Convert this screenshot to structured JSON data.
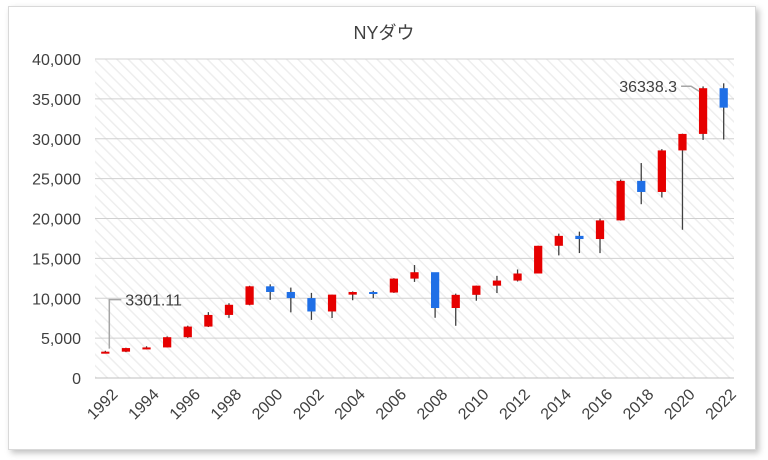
{
  "chart_data": {
    "type": "candlestick",
    "title": "NYダウ",
    "xlabel": "",
    "ylabel": "",
    "ylim": [
      0,
      40000
    ],
    "y_ticks": [
      0,
      5000,
      10000,
      15000,
      20000,
      25000,
      30000,
      35000,
      40000
    ],
    "y_tick_labels": [
      "0",
      "5,000",
      "10,000",
      "15,000",
      "20,000",
      "25,000",
      "30,000",
      "35,000",
      "40,000"
    ],
    "x_tick_labels": [
      "1992",
      "1994",
      "1996",
      "1998",
      "2000",
      "2002",
      "2004",
      "2006",
      "2008",
      "2010",
      "2012",
      "2014",
      "2016",
      "2018",
      "2020",
      "2022"
    ],
    "grid": true,
    "colors": {
      "up": "#e60000",
      "down": "#1f6fe6",
      "wick": "#404040",
      "grid": "#d0d0d0",
      "plot_hatch": "#eeeeee"
    },
    "candles": [
      {
        "x": "1992",
        "open": 3168,
        "close": 3301.11,
        "high": 3413,
        "low": 3136
      },
      {
        "x": "1993",
        "open": 3301,
        "close": 3754,
        "high": 3794,
        "low": 3241
      },
      {
        "x": "1994",
        "open": 3754,
        "close": 3834,
        "high": 3978,
        "low": 3593
      },
      {
        "x": "1995",
        "open": 3834,
        "close": 5117,
        "high": 5216,
        "low": 3832
      },
      {
        "x": "1996",
        "open": 5117,
        "close": 6448,
        "high": 6561,
        "low": 5032
      },
      {
        "x": "1997",
        "open": 6448,
        "close": 7908,
        "high": 8259,
        "low": 6391
      },
      {
        "x": "1998",
        "open": 7908,
        "close": 9181,
        "high": 9374,
        "low": 7539
      },
      {
        "x": "1999",
        "open": 9181,
        "close": 11497,
        "high": 11568,
        "low": 9120
      },
      {
        "x": "2000",
        "open": 11497,
        "close": 10787,
        "high": 11750,
        "low": 9796
      },
      {
        "x": "2001",
        "open": 10787,
        "close": 10021,
        "high": 11338,
        "low": 8236
      },
      {
        "x": "2002",
        "open": 10021,
        "close": 8342,
        "high": 10673,
        "low": 7286
      },
      {
        "x": "2003",
        "open": 8342,
        "close": 10454,
        "high": 10454,
        "low": 7524
      },
      {
        "x": "2004",
        "open": 10454,
        "close": 10783,
        "high": 10854,
        "low": 9750
      },
      {
        "x": "2005",
        "open": 10783,
        "close": 10718,
        "high": 10940,
        "low": 10012
      },
      {
        "x": "2006",
        "open": 10718,
        "close": 12463,
        "high": 12511,
        "low": 10667
      },
      {
        "x": "2007",
        "open": 12463,
        "close": 13265,
        "high": 14164,
        "low": 12050
      },
      {
        "x": "2008",
        "open": 13265,
        "close": 8776,
        "high": 13058,
        "low": 7552
      },
      {
        "x": "2009",
        "open": 8776,
        "close": 10428,
        "high": 10580,
        "low": 6547
      },
      {
        "x": "2010",
        "open": 10428,
        "close": 11578,
        "high": 11585,
        "low": 9686
      },
      {
        "x": "2011",
        "open": 11578,
        "close": 12218,
        "high": 12810,
        "low": 10655
      },
      {
        "x": "2012",
        "open": 12218,
        "close": 13104,
        "high": 13610,
        "low": 12101
      },
      {
        "x": "2013",
        "open": 13104,
        "close": 16577,
        "high": 16588,
        "low": 13104
      },
      {
        "x": "2014",
        "open": 16577,
        "close": 17823,
        "high": 18103,
        "low": 15373
      },
      {
        "x": "2015",
        "open": 17823,
        "close": 17425,
        "high": 18351,
        "low": 15666
      },
      {
        "x": "2016",
        "open": 17425,
        "close": 19763,
        "high": 19987,
        "low": 15660
      },
      {
        "x": "2017",
        "open": 19763,
        "close": 24719,
        "high": 24876,
        "low": 19732
      },
      {
        "x": "2018",
        "open": 24719,
        "close": 23327,
        "high": 26951,
        "low": 21792
      },
      {
        "x": "2019",
        "open": 23327,
        "close": 28538,
        "high": 28701,
        "low": 22638
      },
      {
        "x": "2020",
        "open": 28538,
        "close": 30606,
        "high": 30637,
        "low": 18591
      },
      {
        "x": "2021",
        "open": 30606,
        "close": 36338.3,
        "high": 36565,
        "low": 29856
      },
      {
        "x": "2022",
        "open": 36338,
        "close": 33900,
        "high": 36952,
        "low": 29900
      }
    ],
    "annotations": [
      {
        "text": "3301.11",
        "x": "1992",
        "value": 3301.11
      },
      {
        "text": "36338.3",
        "x": "2021",
        "value": 36338.3
      }
    ]
  }
}
